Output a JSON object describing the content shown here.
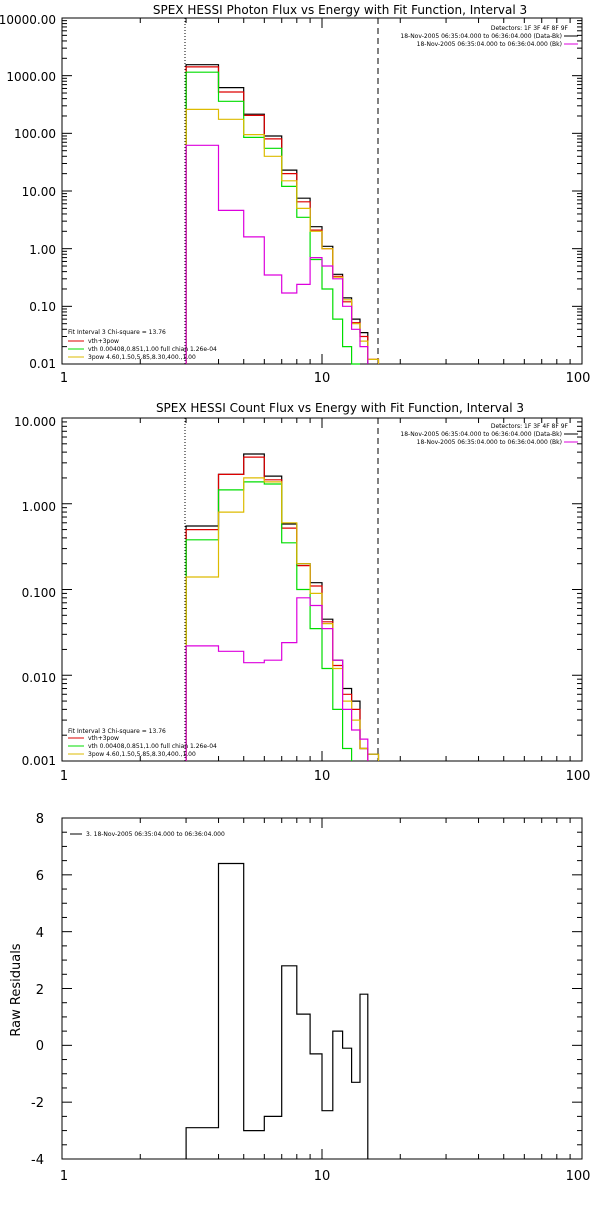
{
  "panels": {
    "photon": {
      "title": "SPEX HESSI Photon Flux vs Energy with Fit Function, Interval 3",
      "y_tick_labels": [
        "10000.00",
        "1000.00",
        "100.00",
        "10.00",
        "1.00",
        "0.10",
        "0.01"
      ],
      "x_tick_labels": [
        "1",
        "10",
        "100"
      ],
      "legend_right": {
        "line1": "Detectors: 1F 3F 4F 8F 9F",
        "line2": "18-Nov-2005 06:35:04.000 to 06:36:04.000 (Data-Bk)",
        "line3": "18-Nov-2005 06:35:04.000 to 06:36:04.000 (Bk)"
      },
      "legend_left": {
        "line1": "Fit Interval 3   Chi-square = 13.76",
        "line2": "vth+3pow",
        "line3": "vth 0.00408,0.851,1.00  full chian 1.26e-04",
        "line4": "3pow 4.60,1.50,5.85,8.30,400.,1.00"
      }
    },
    "count": {
      "title": "SPEX HESSI Count Flux vs Energy with Fit Function, Interval 3",
      "y_tick_labels": [
        "10.000",
        "1.000",
        "0.100",
        "0.010",
        "0.001"
      ],
      "x_tick_labels": [
        "1",
        "10",
        "100"
      ],
      "legend_right": {
        "line1": "Detectors: 1F 3F 4F 8F 9F",
        "line2": "18-Nov-2005 06:35:04.000 to 06:36:04.000 (Data-Bk)",
        "line3": "18-Nov-2005 06:35:04.000 to 06:36:04.000 (Bk)"
      },
      "legend_left": {
        "line1": "Fit Interval 3   Chi-square = 13.76",
        "line2": "vth+3pow",
        "line3": "vth 0.00408,0.851,1.00  full chian 1.26e-04",
        "line4": "3pow 4.60,1.50,5.85,8.30,400.,1.00"
      }
    },
    "residual": {
      "ylabel": "Raw Residuals",
      "y_tick_labels": [
        "8",
        "6",
        "4",
        "2",
        "0",
        "-2",
        "-4"
      ],
      "x_tick_labels": [
        "1",
        "10",
        "100"
      ],
      "legend_line": "3. 18-Nov-2005 06:35:04.000 to 06:36:04.000"
    }
  },
  "colors": {
    "data": "#000000",
    "total_fit": "#dd0000",
    "vth": "#00dd00",
    "pow": "#ddbb00",
    "background": "#dd00dd"
  },
  "chart_data": [
    {
      "type": "line",
      "title": "SPEX HESSI Photon Flux vs Energy with Fit Function, Interval 3",
      "x_scale": "log",
      "y_scale": "log",
      "xlim": [
        1,
        100
      ],
      "ylim": [
        0.01,
        10000
      ],
      "bin_edges": [
        3.0,
        4.0,
        5.0,
        6.0,
        7.0,
        8.0,
        9.0,
        10.0,
        11.0,
        12.0,
        13.0,
        14.0,
        15.0,
        16.5,
        18.0
      ],
      "vertical_lines": [
        {
          "x": 3.0,
          "style": "dotted"
        },
        {
          "x": 16.5,
          "style": "dashed"
        }
      ],
      "series": [
        {
          "name": "Data-Bk",
          "color": "#000000",
          "values": [
            1550,
            620,
            215,
            90,
            23,
            7.5,
            2.4,
            1.1,
            0.36,
            0.14,
            0.06,
            0.035,
            null,
            null
          ]
        },
        {
          "name": "vth+3pow",
          "color": "#dd0000",
          "values": [
            1420,
            520,
            205,
            80,
            20,
            6.5,
            2.1,
            1.0,
            0.33,
            0.12,
            0.052,
            0.03,
            0.012,
            null
          ]
        },
        {
          "name": "vth",
          "color": "#00dd00",
          "values": [
            1150,
            360,
            85,
            55,
            12,
            3.5,
            0.65,
            0.2,
            0.06,
            0.02,
            0.01,
            null,
            null,
            null
          ]
        },
        {
          "name": "3pow",
          "color": "#ddbb00",
          "values": [
            260,
            175,
            95,
            40,
            15,
            5,
            2.0,
            1.0,
            0.32,
            0.13,
            0.05,
            0.025,
            0.012,
            null
          ]
        },
        {
          "name": "Bk",
          "color": "#dd00dd",
          "values": [
            62,
            4.6,
            1.6,
            0.35,
            0.17,
            0.24,
            0.7,
            0.5,
            0.3,
            0.1,
            0.04,
            0.02,
            null,
            null
          ]
        }
      ]
    },
    {
      "type": "line",
      "title": "SPEX HESSI Count Flux vs Energy with Fit Function, Interval 3",
      "x_scale": "log",
      "y_scale": "log",
      "xlim": [
        1,
        100
      ],
      "ylim": [
        0.001,
        10
      ],
      "bin_edges": [
        3.0,
        4.0,
        5.0,
        6.0,
        7.0,
        8.0,
        9.0,
        10.0,
        11.0,
        12.0,
        13.0,
        14.0,
        15.0,
        16.5,
        18.0
      ],
      "vertical_lines": [
        {
          "x": 3.0,
          "style": "dotted"
        },
        {
          "x": 16.5,
          "style": "dashed"
        }
      ],
      "series": [
        {
          "name": "Data-Bk",
          "color": "#000000",
          "values": [
            0.55,
            2.2,
            3.8,
            2.1,
            0.58,
            0.2,
            0.12,
            0.045,
            0.015,
            0.007,
            0.005,
            0.0014,
            0.0012,
            null
          ]
        },
        {
          "name": "vth+3pow",
          "color": "#dd0000",
          "values": [
            0.5,
            2.2,
            3.5,
            1.9,
            0.52,
            0.19,
            0.11,
            0.042,
            0.013,
            0.006,
            0.004,
            0.0014,
            null,
            null
          ]
        },
        {
          "name": "vth",
          "color": "#00dd00",
          "values": [
            0.38,
            1.45,
            1.8,
            1.7,
            0.35,
            0.1,
            0.035,
            0.012,
            0.004,
            0.0014,
            null,
            null,
            null,
            null
          ]
        },
        {
          "name": "3pow",
          "color": "#ddbb00",
          "values": [
            0.14,
            0.8,
            2.0,
            1.8,
            0.6,
            0.2,
            0.09,
            0.04,
            0.012,
            0.005,
            0.003,
            0.0014,
            0.0012,
            null
          ]
        },
        {
          "name": "Bk",
          "color": "#dd00dd",
          "values": [
            0.022,
            0.019,
            0.014,
            0.015,
            0.024,
            0.08,
            0.065,
            0.035,
            0.015,
            0.004,
            0.0023,
            0.0018,
            null,
            null
          ]
        }
      ]
    },
    {
      "type": "line",
      "ylabel": "Raw Residuals",
      "x_scale": "log",
      "y_scale": "linear",
      "xlim": [
        1,
        100
      ],
      "ylim": [
        -4,
        8
      ],
      "bin_edges": [
        3.0,
        4.0,
        5.0,
        6.0,
        7.0,
        8.0,
        9.0,
        10.0,
        11.0,
        12.0,
        13.0,
        14.0,
        15.0,
        16.5
      ],
      "series": [
        {
          "color": "#000000",
          "values": [
            -2.9,
            6.4,
            -3.0,
            -2.5,
            2.8,
            1.1,
            -0.3,
            -2.3,
            0.5,
            -0.1,
            -1.3,
            1.8,
            null
          ]
        }
      ]
    }
  ]
}
